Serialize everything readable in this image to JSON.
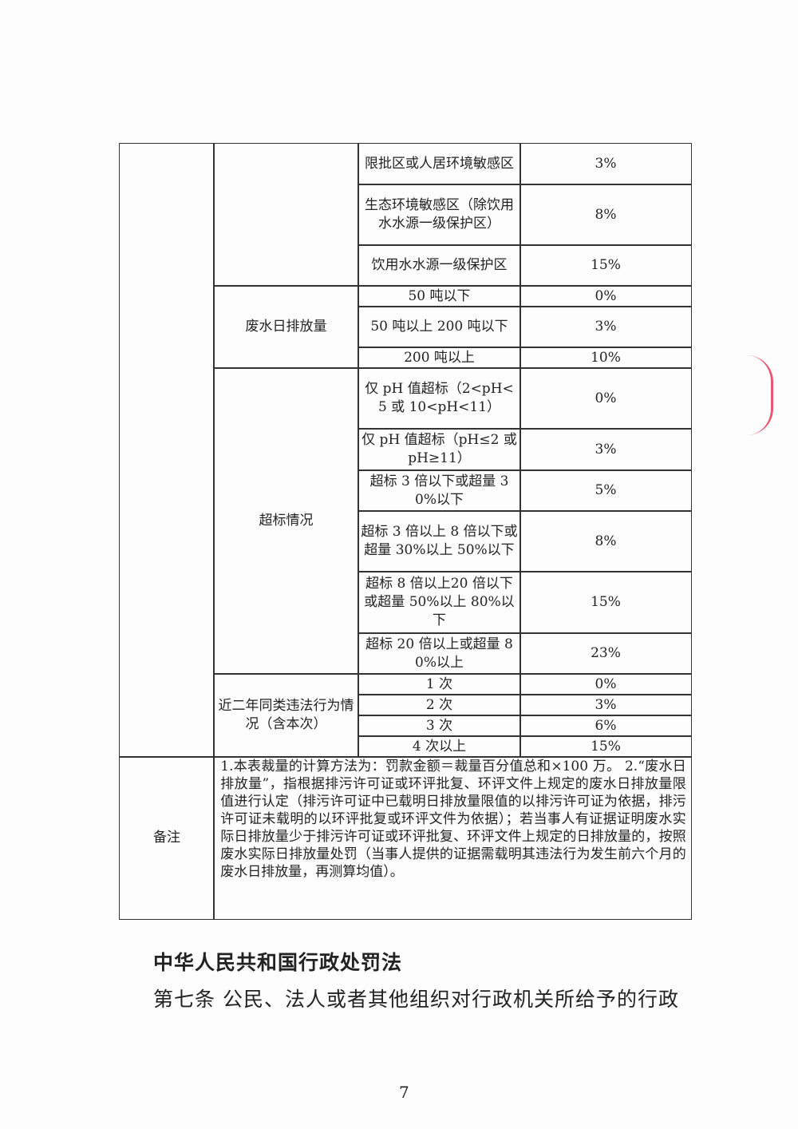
{
  "table": {
    "rows": [
      {
        "criterion": "限批区或人居环境敏感区",
        "pct": "3%"
      },
      {
        "criterion": "生态环境敏感区（除饮用水水源一级保护区）",
        "pct": "8%"
      },
      {
        "criterion": "饮用水水源一级保护区",
        "pct": "15%"
      },
      {
        "criterion": "50 吨以下",
        "pct": "0%"
      },
      {
        "criterion": "50 吨以上 200 吨以下",
        "pct": "3%"
      },
      {
        "criterion": "200 吨以上",
        "pct": "10%"
      },
      {
        "criterion": "仅 pH 值超标（2<pH<5 或 10<pH<11）",
        "pct": "0%"
      },
      {
        "criterion": "仅 pH 值超标（pH≤2 或 pH≥11）",
        "pct": "3%"
      },
      {
        "criterion": "超标 3 倍以下或超量 30%以下",
        "pct": "5%"
      },
      {
        "criterion": "超标 3 倍以上 8 倍以下或超量 30%以上 50%以下",
        "pct": "8%"
      },
      {
        "criterion": "超标 8 倍以上20 倍以下或超量 50%以上 80%以下",
        "pct": "15%"
      },
      {
        "criterion": "超标 20 倍以上或超量 80%以上",
        "pct": "23%"
      },
      {
        "criterion": "1 次",
        "pct": "0%"
      },
      {
        "criterion": "2 次",
        "pct": "3%"
      },
      {
        "criterion": "3 次",
        "pct": "6%"
      },
      {
        "criterion": "4 次以上",
        "pct": "15%"
      }
    ],
    "groups": {
      "discharge": "废水日排放量",
      "exceed": "超标情况",
      "repeat": "近二年同类违法行为情况（含本次）"
    },
    "note_label": "备注",
    "note_text": "1.本表裁量的计算方法为：罚款金额＝裁量百分值总和×100 万。 2.“废水日排放量”，指根据排污许可证或环评批复、环评文件上规定的废水日排放量限值进行认定（排污许可证中已载明日排放量限值的以排污许可证为依据，排污许可证未载明的以环评批复或环评文件为依据）；若当事人有证据证明废水实际日排放量少于排污许可证或环评批复、环评文件上规定的日排放量的，按照废水实际日排放量处罚（当事人提供的证据需载明其违法行为发生前六个月的废水日排放量，再测算均值）。"
  },
  "law_title": "中华人民共和国行政处罚法",
  "law_article": "第七条 公民、法人或者其他组织对行政机关所给予的行政",
  "page_number": "7",
  "colors": {
    "stamp": "#e0304a"
  }
}
